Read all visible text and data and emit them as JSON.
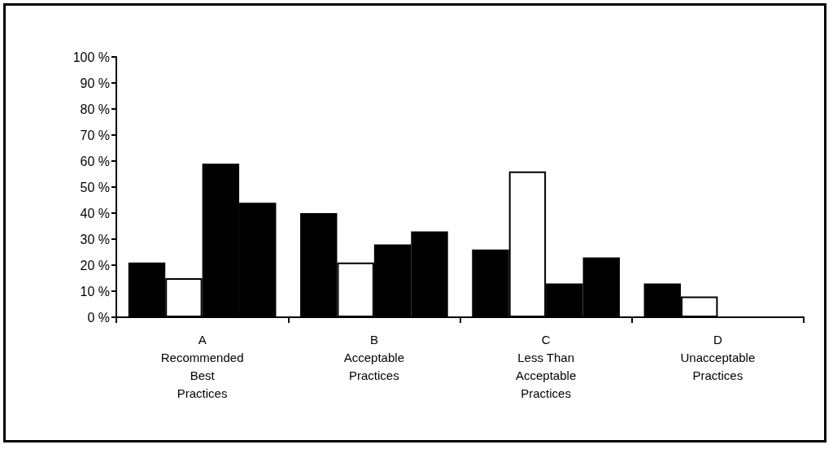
{
  "chart_data": {
    "type": "bar",
    "categories": [
      "A\nRecommended\nBest\nPractices",
      "B\nAcceptable\nPractices",
      "C\nLess Than\nAcceptable\nPractices",
      "D\nUnacceptable\nPractices"
    ],
    "series": [
      {
        "color": "#000000",
        "values": [
          21,
          40,
          26,
          13
        ]
      },
      {
        "color": "#ffffff",
        "values": [
          15,
          21,
          56,
          8
        ]
      },
      {
        "color": "#000000",
        "values": [
          59,
          28,
          13,
          0
        ]
      },
      {
        "color": "#000000",
        "values": [
          44,
          33,
          23,
          0
        ]
      }
    ],
    "ylim": [
      0,
      100
    ],
    "yticks": [
      {
        "value": 0,
        "label": "0 %"
      },
      {
        "value": 10,
        "label": "10 %"
      },
      {
        "value": 20,
        "label": "20 %"
      },
      {
        "value": 30,
        "label": "30 %"
      },
      {
        "value": 40,
        "label": "40 %"
      },
      {
        "value": 50,
        "label": "50 %"
      },
      {
        "value": 60,
        "label": "60 %"
      },
      {
        "value": 70,
        "label": "70 %"
      },
      {
        "value": 80,
        "label": "80 %"
      },
      {
        "value": 90,
        "label": "90 %"
      },
      {
        "value": 100,
        "label": "100 %"
      }
    ],
    "grid": false
  }
}
